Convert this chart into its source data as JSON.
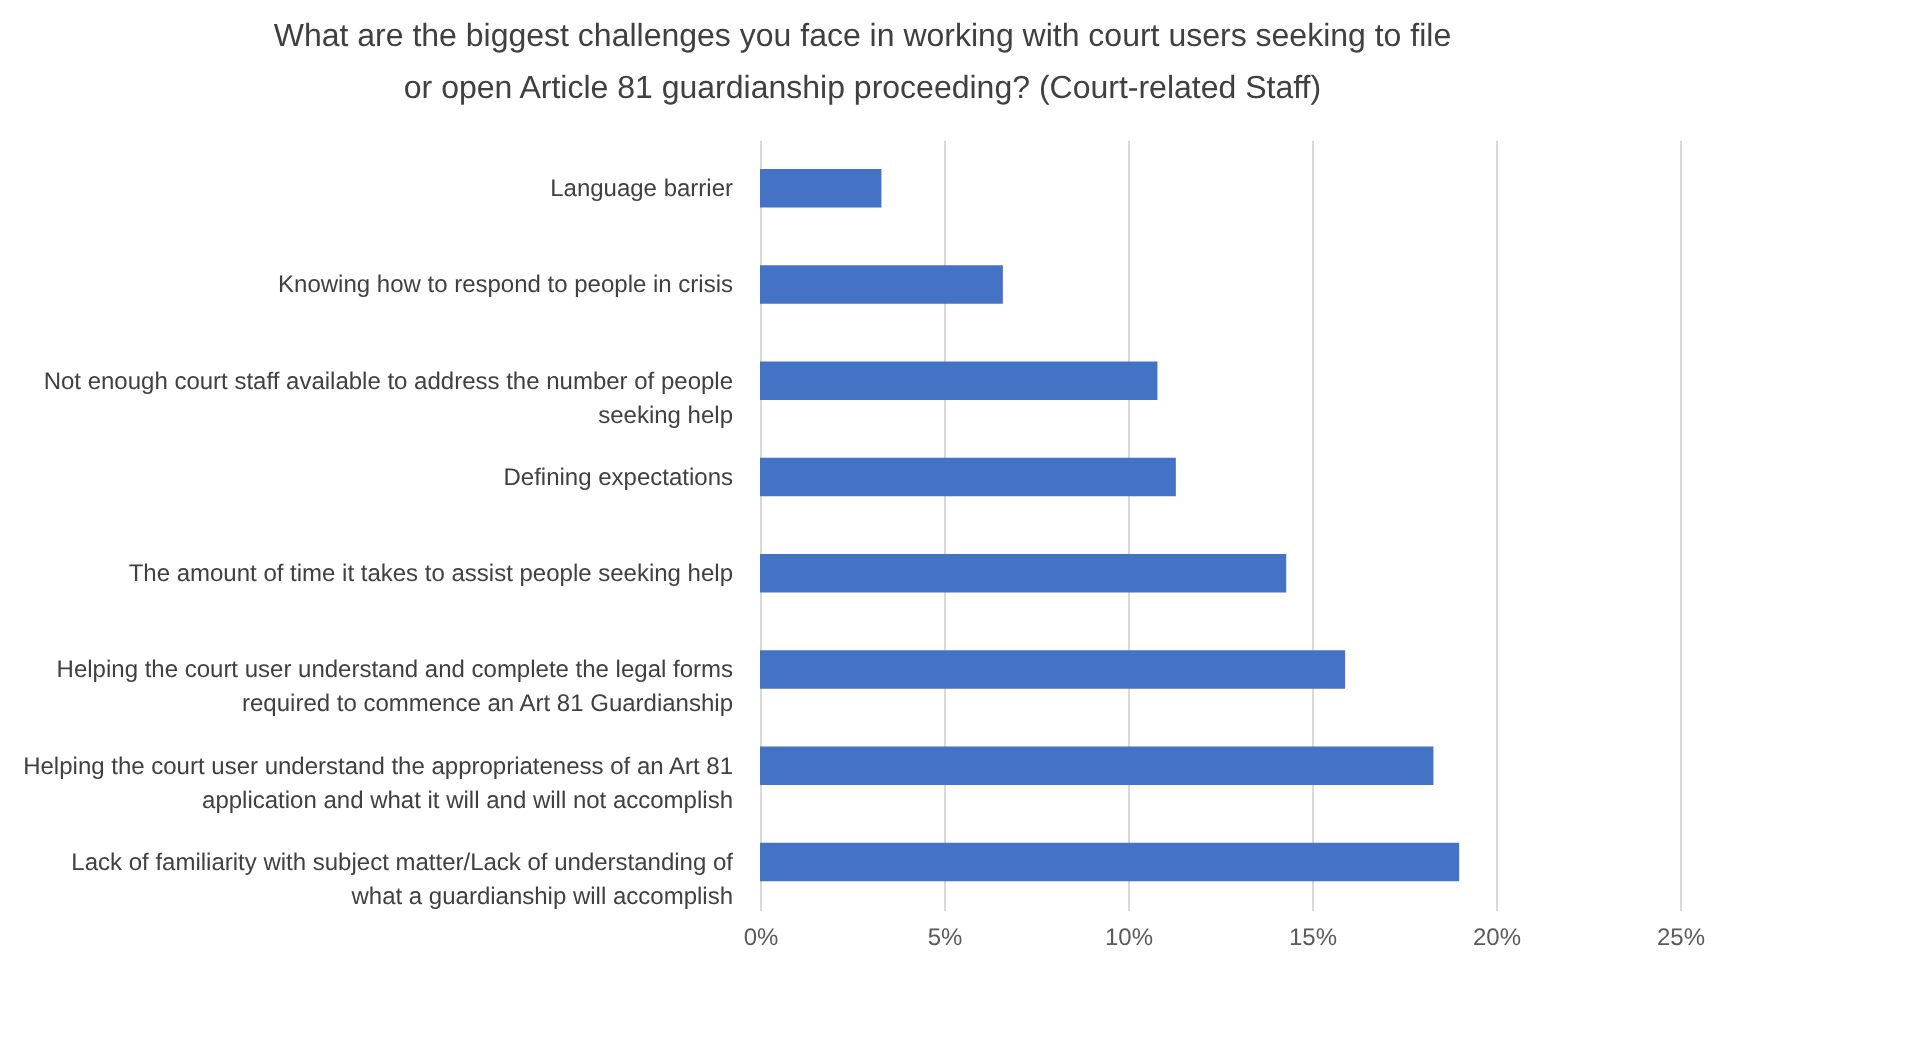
{
  "chart_data": {
    "type": "bar",
    "orientation": "horizontal",
    "title": "What are the biggest challenges you face in working with court users seeking to file or open Article 81 guardianship proceeding? (Court-related Staff)",
    "categories": [
      "Language barrier",
      "Knowing how to respond to people in crisis",
      "Not enough court staff available to address the number of people seeking help",
      "Defining expectations",
      "The amount of time it takes to assist people seeking help",
      "Helping the court user understand and complete the legal forms required to commence an Art 81 Guardianship",
      "Helping the court user understand the appropriateness of an Art 81 application and what it will and will not accomplish",
      "Lack of familiarity with subject matter/Lack of understanding of what a guardianship will accomplish"
    ],
    "values": [
      3.3,
      6.6,
      10.8,
      11.3,
      14.3,
      15.9,
      18.3,
      19.0
    ],
    "color": "#4472c4",
    "xlim": [
      0,
      25
    ],
    "xticks": [
      {
        "value": 0,
        "label": "0%"
      },
      {
        "value": 5,
        "label": "5%"
      },
      {
        "value": 10,
        "label": "10%"
      },
      {
        "value": 15,
        "label": "15%"
      },
      {
        "value": 20,
        "label": "20%"
      },
      {
        "value": 25,
        "label": "25%"
      }
    ],
    "grid": "x"
  }
}
